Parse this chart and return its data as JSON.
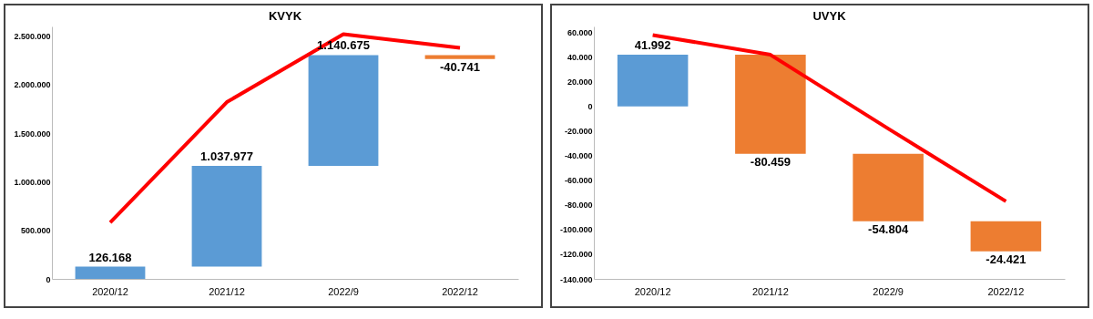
{
  "chart_data": [
    {
      "type": "bar",
      "title": "KVYK",
      "categories": [
        "2020/12",
        "2021/12",
        "2022/9",
        "2022/12"
      ],
      "ylim": [
        0,
        2600000
      ],
      "yticks": [
        {
          "value": 0,
          "label": "0"
        },
        {
          "value": 500000,
          "label": "500.000"
        },
        {
          "value": 1000000,
          "label": "1.000.000"
        },
        {
          "value": 1500000,
          "label": "1.500.000"
        },
        {
          "value": 2000000,
          "label": "2.000.000"
        },
        {
          "value": 2500000,
          "label": "2.500.000"
        }
      ],
      "grid": false,
      "series": [
        {
          "base": [
            0,
            126168,
            1164145,
            2304820
          ],
          "values": [
            126168,
            1037977,
            1140675,
            -40741
          ],
          "colors": [
            "#5b9bd5",
            "#5b9bd5",
            "#5b9bd5",
            "#ed7d31"
          ],
          "value_labels": [
            "126.168",
            "1.037.977",
            "1.140.675",
            "-40.741"
          ]
        },
        {
          "type": "line",
          "color": "#ff0000",
          "line_style": "solid",
          "values": [
            580000,
            1820000,
            2520000,
            2380000
          ]
        }
      ]
    },
    {
      "type": "bar",
      "title": "UVYK",
      "categories": [
        "2020/12",
        "2021/12",
        "2022/9",
        "2022/12"
      ],
      "ylim": [
        -140000,
        65000
      ],
      "yticks": [
        {
          "value": -140000,
          "label": "-140.000"
        },
        {
          "value": -120000,
          "label": "-120.000"
        },
        {
          "value": -100000,
          "label": "-100.000"
        },
        {
          "value": -80000,
          "label": "-80.000"
        },
        {
          "value": -60000,
          "label": "-60.000"
        },
        {
          "value": -40000,
          "label": "-40.000"
        },
        {
          "value": -20000,
          "label": "-20.000"
        },
        {
          "value": 0,
          "label": "0"
        },
        {
          "value": 20000,
          "label": "20.000"
        },
        {
          "value": 40000,
          "label": "40.000"
        },
        {
          "value": 60000,
          "label": "60.000"
        }
      ],
      "grid": false,
      "series": [
        {
          "base": [
            0,
            41992,
            -38467,
            -93271
          ],
          "values": [
            41992,
            -80459,
            -54804,
            -24421
          ],
          "colors": [
            "#5b9bd5",
            "#ed7d31",
            "#ed7d31",
            "#ed7d31"
          ],
          "value_labels": [
            "41.992",
            "-80.459",
            "-54.804",
            "-24.421"
          ]
        },
        {
          "type": "line",
          "color": "#ff0000",
          "line_style": "solid",
          "values": [
            58000,
            42000,
            -18000,
            -77000
          ]
        }
      ]
    }
  ]
}
